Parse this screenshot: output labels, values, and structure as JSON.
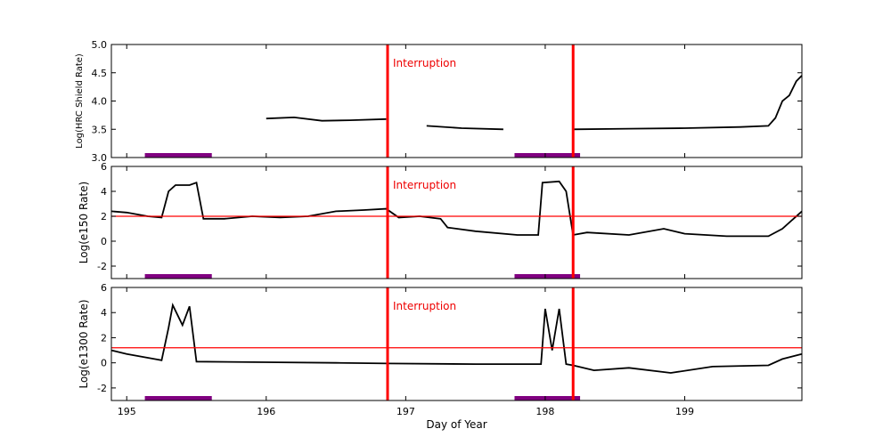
{
  "chart_data": [
    {
      "type": "line",
      "ylabel": "Log(HRC Shield Rate)",
      "xlim": [
        194.89,
        199.84
      ],
      "xticks": [
        195,
        196,
        197,
        198,
        199
      ],
      "ylim": [
        3,
        5
      ],
      "yticks": [
        {
          "value": 3,
          "label": "3.0"
        },
        3.5,
        {
          "value": 4,
          "label": "4.0"
        },
        4.5,
        {
          "value": 5,
          "label": "5.0"
        }
      ],
      "x": [
        196.0,
        196.2,
        196.4,
        196.6,
        196.86,
        197.0,
        197.15,
        197.4,
        197.7,
        197.9,
        198.2,
        198.6,
        199.0,
        199.4,
        199.6,
        199.65,
        199.7,
        199.75,
        199.8,
        199.84
      ],
      "series": [
        {
          "color": "#000000",
          "values": [
            3.69,
            3.71,
            3.65,
            3.66,
            3.68,
            null,
            3.56,
            3.52,
            3.5,
            null,
            3.5,
            3.51,
            3.52,
            3.54,
            3.56,
            3.7,
            4.0,
            4.1,
            4.35,
            4.45
          ]
        }
      ],
      "hlines": [],
      "hline_color": "#ff0000",
      "vlines": [
        196.87,
        198.2
      ],
      "vline_color": "#ff0000",
      "annotation": "Interruption",
      "spans": [
        [
          195.13,
          195.61
        ],
        [
          197.78,
          198.25
        ]
      ],
      "span_color": "#800080"
    },
    {
      "type": "line",
      "ylabel": "Log(e150  Rate)",
      "xlim": [
        194.89,
        199.84
      ],
      "xticks": [
        195,
        196,
        197,
        198,
        199
      ],
      "ylim": [
        -3,
        6
      ],
      "yticks": [
        -2,
        0,
        2,
        4,
        6
      ],
      "x": [
        194.89,
        195.0,
        195.15,
        195.25,
        195.3,
        195.35,
        195.45,
        195.5,
        195.55,
        195.7,
        195.9,
        196.1,
        196.3,
        196.5,
        196.7,
        196.86,
        196.95,
        197.1,
        197.25,
        197.3,
        197.5,
        197.8,
        197.95,
        197.98,
        198.1,
        198.15,
        198.2,
        198.3,
        198.6,
        198.85,
        199.0,
        199.3,
        199.6,
        199.7,
        199.84
      ],
      "series": [
        {
          "color": "#000000",
          "values": [
            2.4,
            2.3,
            2.0,
            1.9,
            4.0,
            4.5,
            4.5,
            4.7,
            1.8,
            1.8,
            2.0,
            1.9,
            2.0,
            2.4,
            2.5,
            2.6,
            1.9,
            2.0,
            1.8,
            1.1,
            0.8,
            0.5,
            0.5,
            4.7,
            4.8,
            4.0,
            0.5,
            0.7,
            0.5,
            1.0,
            0.6,
            0.4,
            0.4,
            1.0,
            2.4
          ]
        }
      ],
      "hlines": [
        2
      ],
      "hline_color": "#ff0000",
      "vlines": [
        196.87,
        198.2
      ],
      "vline_color": "#ff0000",
      "annotation": "Interruption",
      "spans": [
        [
          195.13,
          195.61
        ],
        [
          197.78,
          198.25
        ]
      ],
      "span_color": "#800080"
    },
    {
      "type": "line",
      "ylabel": "Log(e1300 Rate)",
      "xlabel": "Day of Year",
      "xlim": [
        194.89,
        199.84
      ],
      "xticks": [
        195,
        196,
        197,
        198,
        199
      ],
      "ylim": [
        -3,
        6
      ],
      "yticks": [
        -2,
        0,
        2,
        4,
        6
      ],
      "x": [
        194.89,
        195.0,
        195.2,
        195.25,
        195.3,
        195.33,
        195.4,
        195.45,
        195.5,
        196.0,
        196.5,
        196.87,
        197.5,
        197.97,
        198.0,
        198.05,
        198.1,
        198.15,
        198.2,
        198.35,
        198.6,
        198.9,
        199.2,
        199.6,
        199.7,
        199.84
      ],
      "series": [
        {
          "color": "#000000",
          "values": [
            1.0,
            0.7,
            0.3,
            0.2,
            2.8,
            4.6,
            3.0,
            4.5,
            0.1,
            0.05,
            0.0,
            -0.05,
            -0.1,
            -0.1,
            4.3,
            1.0,
            4.3,
            -0.1,
            -0.2,
            -0.6,
            -0.4,
            -0.8,
            -0.3,
            -0.2,
            0.3,
            0.7
          ]
        }
      ],
      "hlines": [
        1.2
      ],
      "hline_color": "#ff0000",
      "vlines": [
        196.87,
        198.2
      ],
      "vline_color": "#ff0000",
      "annotation": "Interruption",
      "spans": [
        [
          195.13,
          195.61
        ],
        [
          197.78,
          198.25
        ]
      ],
      "span_color": "#800080"
    }
  ]
}
